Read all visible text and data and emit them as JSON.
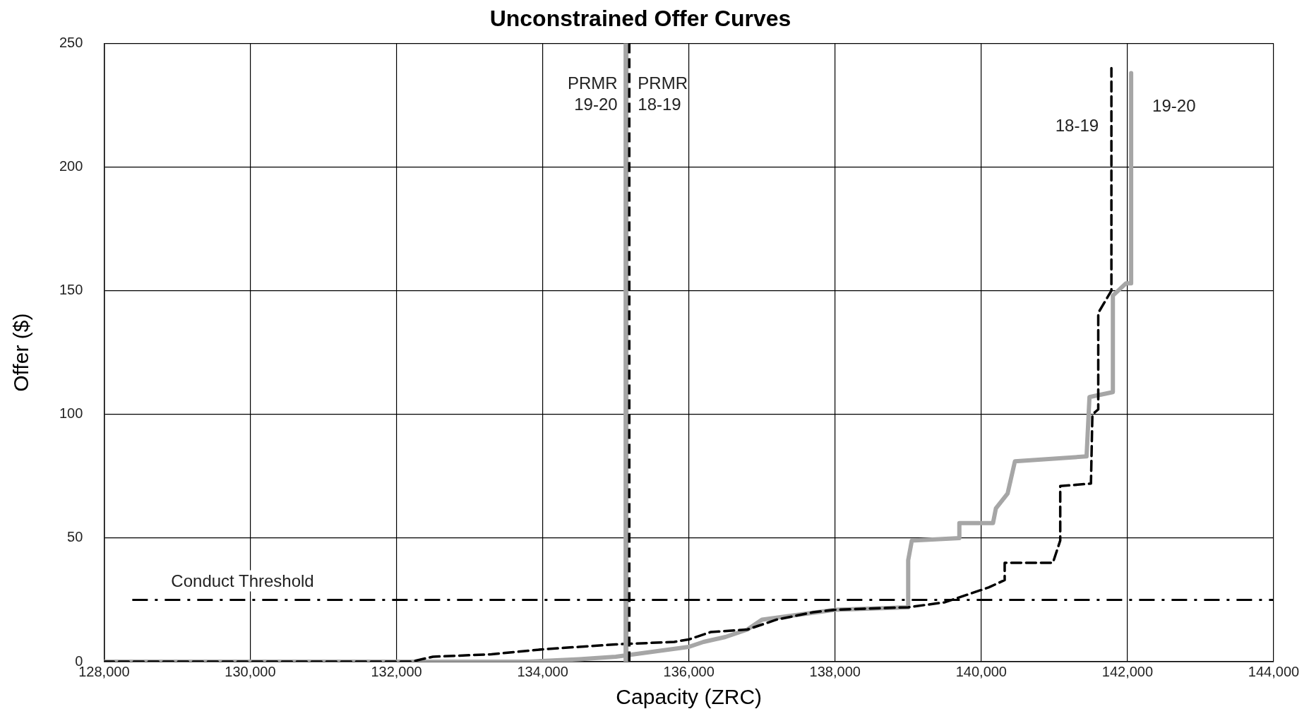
{
  "chart_data": {
    "type": "line",
    "title": "Unconstrained Offer Curves",
    "xlabel": "Capacity (ZRC)",
    "ylabel": "Offer ($)",
    "xlim": [
      128000,
      144000
    ],
    "xticks": [
      {
        "value": 128000,
        "label": "128,000"
      },
      {
        "value": 130000,
        "label": "130,000"
      },
      {
        "value": 132000,
        "label": "132,000"
      },
      {
        "value": 134000,
        "label": "134,000"
      },
      {
        "value": 136000,
        "label": "136,000"
      },
      {
        "value": 138000,
        "label": "138,000"
      },
      {
        "value": 140000,
        "label": "140,000"
      },
      {
        "value": 142000,
        "label": "142,000"
      },
      {
        "value": 144000,
        "label": "144,000"
      }
    ],
    "ylim": [
      0,
      250
    ],
    "yticks": [
      0,
      50,
      100,
      150,
      200,
      250
    ],
    "grid": true,
    "legend": false,
    "marker": "none",
    "series": [
      {
        "name": "18-19",
        "color": "#000000",
        "line_style": "dashed",
        "x": [
          128000,
          132200,
          132500,
          133300,
          134000,
          134500,
          135000,
          135800,
          136000,
          136300,
          136800,
          137200,
          137700,
          138000,
          139000,
          139500,
          139800,
          140100,
          140320,
          140320,
          140980,
          141080,
          141080,
          141500,
          141520,
          141600,
          141600,
          141780,
          141780
        ],
        "values": [
          0,
          0,
          2,
          3,
          5,
          6,
          7,
          8,
          9,
          12,
          13,
          17,
          20,
          21,
          22,
          24,
          27,
          30,
          33,
          40,
          40,
          49,
          71,
          72,
          100,
          102,
          141,
          150,
          240
        ]
      },
      {
        "name": "19-20",
        "color": "#a6a6a6",
        "line_style": "solid",
        "x": [
          128000,
          133800,
          134500,
          135000,
          135500,
          136000,
          136200,
          136500,
          136800,
          137000,
          137500,
          138000,
          139000,
          139000,
          139050,
          139700,
          139700,
          140160,
          140200,
          140360,
          140460,
          141440,
          141480,
          141800,
          141800,
          141980,
          142050,
          142050
        ],
        "values": [
          0,
          0,
          1,
          2,
          4,
          6,
          8,
          10,
          13,
          17,
          19,
          21,
          22,
          41,
          49,
          50,
          56,
          56,
          62,
          68,
          81,
          83,
          107,
          109,
          148,
          153,
          153,
          238
        ]
      }
    ],
    "ref_lines": [
      {
        "axis": "x",
        "value": 135140,
        "label": "PRMR 19-20",
        "color": "#a6a6a6",
        "line_style": "solid"
      },
      {
        "axis": "x",
        "value": 135185,
        "label": "PRMR 18-19",
        "color": "#000000",
        "line_style": "dashed"
      },
      {
        "axis": "y",
        "value": 25,
        "label": "Conduct Threshold",
        "color": "#000000",
        "line_style": "dashdot"
      }
    ]
  }
}
